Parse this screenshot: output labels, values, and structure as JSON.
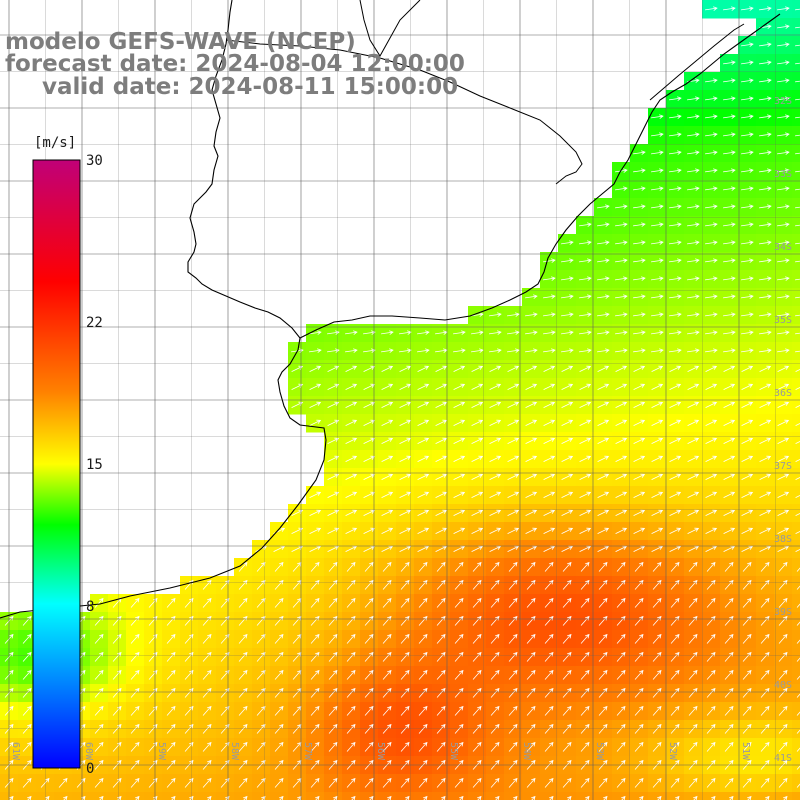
{
  "titles": {
    "model": "modelo GEFS-WAVE (NCEP)",
    "forecast": "forecast date: 2024-08-04 12:00:00",
    "valid": "valid date: 2024-08-11 15:00:00"
  },
  "colorbar": {
    "unit": "[m/s]",
    "ticks": [
      "30",
      "22",
      "15",
      "8",
      "0"
    ],
    "range": [
      0,
      30
    ],
    "tick_values": [
      30,
      22,
      15,
      8,
      0
    ],
    "colors": [
      "#0000ff",
      "#00ffff",
      "#00ff00",
      "#ffff00",
      "#ff7f00",
      "#ff0000",
      "#c00080"
    ]
  },
  "lat_labels": [
    "32S",
    "33S",
    "34S",
    "35S",
    "36S",
    "37S",
    "38S",
    "39S",
    "40S",
    "41S"
  ],
  "lon_labels": [
    "61W",
    "60W",
    "59W",
    "58W",
    "57W",
    "56W",
    "55W",
    "54W",
    "53W",
    "52W",
    "51W"
  ],
  "map_extent": {
    "lon": [
      -61.3,
      -50.6
    ],
    "lat": [
      -41.3,
      -31.0
    ]
  },
  "colors": {
    "land": "#ffffff",
    "coastline": "#000000",
    "grid": "#606060",
    "arrows": "#ffffff",
    "title_text": "#7d7d7d"
  }
}
